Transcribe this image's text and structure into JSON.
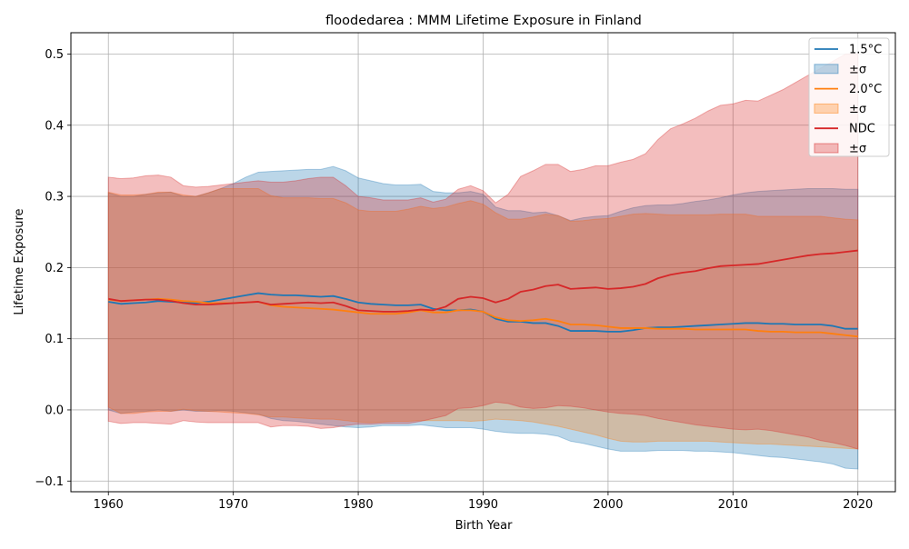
{
  "chart_data": {
    "type": "line",
    "title": "floodedarea : MMM Lifetime Exposure in Finland",
    "xlabel": "Birth Year",
    "ylabel": "Lifetime Exposure",
    "xlim": [
      1957,
      2023
    ],
    "ylim": [
      -0.115,
      0.53
    ],
    "xticks": [
      1960,
      1970,
      1980,
      1990,
      2000,
      2010,
      2020
    ],
    "yticks": [
      -0.1,
      0.0,
      0.1,
      0.2,
      0.3,
      0.4,
      0.5
    ],
    "ytick_labels": [
      "−0.1",
      "0.0",
      "0.1",
      "0.2",
      "0.3",
      "0.4",
      "0.5"
    ],
    "grid": true,
    "legend_position": "top-right",
    "x": [
      1960,
      1961,
      1962,
      1963,
      1964,
      1965,
      1966,
      1967,
      1968,
      1969,
      1970,
      1971,
      1972,
      1973,
      1974,
      1975,
      1976,
      1977,
      1978,
      1979,
      1980,
      1981,
      1982,
      1983,
      1984,
      1985,
      1986,
      1987,
      1988,
      1989,
      1990,
      1991,
      1992,
      1993,
      1994,
      1995,
      1996,
      1997,
      1998,
      1999,
      2000,
      2001,
      2002,
      2003,
      2004,
      2005,
      2006,
      2007,
      2008,
      2009,
      2010,
      2011,
      2012,
      2013,
      2014,
      2015,
      2016,
      2017,
      2018,
      2019,
      2020
    ],
    "series": [
      {
        "name": "1.5°C",
        "band_name": "±σ",
        "color": "#1f77b4",
        "values": [
          0.152,
          0.149,
          0.15,
          0.151,
          0.153,
          0.152,
          0.151,
          0.15,
          0.152,
          0.155,
          0.158,
          0.161,
          0.164,
          0.162,
          0.161,
          0.161,
          0.16,
          0.159,
          0.16,
          0.156,
          0.151,
          0.149,
          0.148,
          0.147,
          0.147,
          0.148,
          0.142,
          0.14,
          0.14,
          0.141,
          0.138,
          0.128,
          0.124,
          0.124,
          0.122,
          0.122,
          0.118,
          0.111,
          0.111,
          0.111,
          0.11,
          0.11,
          0.112,
          0.115,
          0.116,
          0.116,
          0.117,
          0.118,
          0.119,
          0.12,
          0.121,
          0.122,
          0.122,
          0.121,
          0.121,
          0.12,
          0.12,
          0.12,
          0.118,
          0.114,
          0.114
        ],
        "upper": [
          0.305,
          0.3,
          0.3,
          0.303,
          0.305,
          0.306,
          0.3,
          0.3,
          0.305,
          0.311,
          0.318,
          0.327,
          0.334,
          0.335,
          0.336,
          0.337,
          0.338,
          0.338,
          0.342,
          0.336,
          0.326,
          0.322,
          0.318,
          0.316,
          0.316,
          0.317,
          0.307,
          0.305,
          0.305,
          0.307,
          0.303,
          0.285,
          0.28,
          0.28,
          0.277,
          0.278,
          0.273,
          0.266,
          0.27,
          0.272,
          0.273,
          0.279,
          0.284,
          0.287,
          0.288,
          0.288,
          0.29,
          0.293,
          0.295,
          0.298,
          0.302,
          0.305,
          0.307,
          0.308,
          0.309,
          0.31,
          0.311,
          0.311,
          0.311,
          0.31,
          0.31
        ],
        "lower": [
          0.0,
          -0.005,
          -0.003,
          -0.002,
          0.0,
          -0.002,
          0.0,
          -0.002,
          -0.002,
          -0.001,
          -0.002,
          -0.004,
          -0.006,
          -0.012,
          -0.015,
          -0.016,
          -0.018,
          -0.02,
          -0.022,
          -0.024,
          -0.025,
          -0.024,
          -0.022,
          -0.022,
          -0.022,
          -0.021,
          -0.023,
          -0.025,
          -0.025,
          -0.025,
          -0.027,
          -0.03,
          -0.032,
          -0.033,
          -0.033,
          -0.034,
          -0.037,
          -0.044,
          -0.047,
          -0.051,
          -0.055,
          -0.058,
          -0.058,
          -0.058,
          -0.057,
          -0.057,
          -0.057,
          -0.058,
          -0.058,
          -0.059,
          -0.06,
          -0.062,
          -0.064,
          -0.066,
          -0.067,
          -0.069,
          -0.071,
          -0.073,
          -0.076,
          -0.082,
          -0.083
        ]
      },
      {
        "name": "2.0°C",
        "band_name": "±σ",
        "color": "#ff7f0e",
        "values": [
          0.155,
          0.153,
          0.154,
          0.155,
          0.156,
          0.155,
          0.153,
          0.152,
          0.15,
          0.15,
          0.15,
          0.151,
          0.152,
          0.147,
          0.145,
          0.144,
          0.143,
          0.142,
          0.141,
          0.139,
          0.137,
          0.135,
          0.135,
          0.135,
          0.137,
          0.14,
          0.137,
          0.137,
          0.14,
          0.14,
          0.138,
          0.13,
          0.126,
          0.125,
          0.126,
          0.128,
          0.125,
          0.12,
          0.12,
          0.119,
          0.117,
          0.115,
          0.115,
          0.115,
          0.114,
          0.114,
          0.114,
          0.113,
          0.113,
          0.113,
          0.113,
          0.113,
          0.111,
          0.11,
          0.11,
          0.109,
          0.109,
          0.109,
          0.107,
          0.105,
          0.103
        ],
        "upper": [
          0.306,
          0.302,
          0.302,
          0.303,
          0.306,
          0.306,
          0.302,
          0.3,
          0.305,
          0.311,
          0.311,
          0.311,
          0.311,
          0.301,
          0.298,
          0.298,
          0.298,
          0.297,
          0.297,
          0.291,
          0.281,
          0.279,
          0.279,
          0.279,
          0.282,
          0.286,
          0.283,
          0.285,
          0.29,
          0.294,
          0.289,
          0.277,
          0.268,
          0.268,
          0.271,
          0.275,
          0.273,
          0.265,
          0.266,
          0.268,
          0.269,
          0.272,
          0.275,
          0.276,
          0.275,
          0.274,
          0.274,
          0.274,
          0.274,
          0.275,
          0.275,
          0.275,
          0.272,
          0.272,
          0.272,
          0.272,
          0.272,
          0.272,
          0.27,
          0.268,
          0.267
        ],
        "lower": [
          0.004,
          -0.005,
          -0.005,
          -0.003,
          -0.002,
          -0.002,
          0.001,
          -0.001,
          -0.002,
          -0.003,
          -0.004,
          -0.005,
          -0.007,
          -0.01,
          -0.01,
          -0.011,
          -0.012,
          -0.013,
          -0.013,
          -0.015,
          -0.017,
          -0.018,
          -0.017,
          -0.016,
          -0.016,
          -0.015,
          -0.015,
          -0.015,
          -0.015,
          -0.016,
          -0.015,
          -0.013,
          -0.014,
          -0.015,
          -0.017,
          -0.02,
          -0.023,
          -0.027,
          -0.031,
          -0.035,
          -0.04,
          -0.044,
          -0.045,
          -0.045,
          -0.044,
          -0.044,
          -0.044,
          -0.044,
          -0.044,
          -0.045,
          -0.046,
          -0.047,
          -0.048,
          -0.048,
          -0.049,
          -0.05,
          -0.051,
          -0.052,
          -0.053,
          -0.054,
          -0.055
        ]
      },
      {
        "name": "NDC",
        "band_name": "±σ",
        "color": "#d62728",
        "values": [
          0.156,
          0.153,
          0.154,
          0.155,
          0.155,
          0.153,
          0.15,
          0.148,
          0.148,
          0.149,
          0.15,
          0.151,
          0.152,
          0.148,
          0.149,
          0.15,
          0.151,
          0.15,
          0.151,
          0.146,
          0.14,
          0.139,
          0.138,
          0.138,
          0.139,
          0.141,
          0.14,
          0.145,
          0.156,
          0.159,
          0.157,
          0.151,
          0.156,
          0.166,
          0.169,
          0.174,
          0.176,
          0.17,
          0.171,
          0.172,
          0.17,
          0.171,
          0.173,
          0.177,
          0.185,
          0.19,
          0.193,
          0.195,
          0.199,
          0.202,
          0.203,
          0.204,
          0.205,
          0.208,
          0.211,
          0.214,
          0.217,
          0.219,
          0.22,
          0.222,
          0.224
        ],
        "upper": [
          0.327,
          0.325,
          0.326,
          0.329,
          0.33,
          0.327,
          0.315,
          0.313,
          0.314,
          0.316,
          0.318,
          0.32,
          0.322,
          0.32,
          0.32,
          0.322,
          0.325,
          0.327,
          0.327,
          0.315,
          0.3,
          0.298,
          0.295,
          0.295,
          0.295,
          0.298,
          0.292,
          0.296,
          0.31,
          0.315,
          0.308,
          0.291,
          0.303,
          0.328,
          0.336,
          0.345,
          0.345,
          0.335,
          0.338,
          0.343,
          0.343,
          0.348,
          0.352,
          0.36,
          0.38,
          0.395,
          0.402,
          0.41,
          0.42,
          0.428,
          0.43,
          0.435,
          0.434,
          0.442,
          0.45,
          0.46,
          0.47,
          0.48,
          0.49,
          0.5,
          0.5
        ],
        "lower": [
          -0.016,
          -0.019,
          -0.018,
          -0.018,
          -0.019,
          -0.02,
          -0.015,
          -0.017,
          -0.018,
          -0.018,
          -0.018,
          -0.018,
          -0.018,
          -0.024,
          -0.022,
          -0.022,
          -0.023,
          -0.026,
          -0.025,
          -0.022,
          -0.02,
          -0.02,
          -0.019,
          -0.019,
          -0.019,
          -0.016,
          -0.012,
          -0.008,
          0.002,
          0.003,
          0.006,
          0.011,
          0.009,
          0.004,
          0.002,
          0.003,
          0.006,
          0.005,
          0.003,
          0.0,
          -0.003,
          -0.005,
          -0.006,
          -0.008,
          -0.012,
          -0.015,
          -0.018,
          -0.021,
          -0.023,
          -0.025,
          -0.027,
          -0.028,
          -0.027,
          -0.029,
          -0.032,
          -0.035,
          -0.038,
          -0.043,
          -0.046,
          -0.05,
          -0.055
        ]
      }
    ]
  }
}
